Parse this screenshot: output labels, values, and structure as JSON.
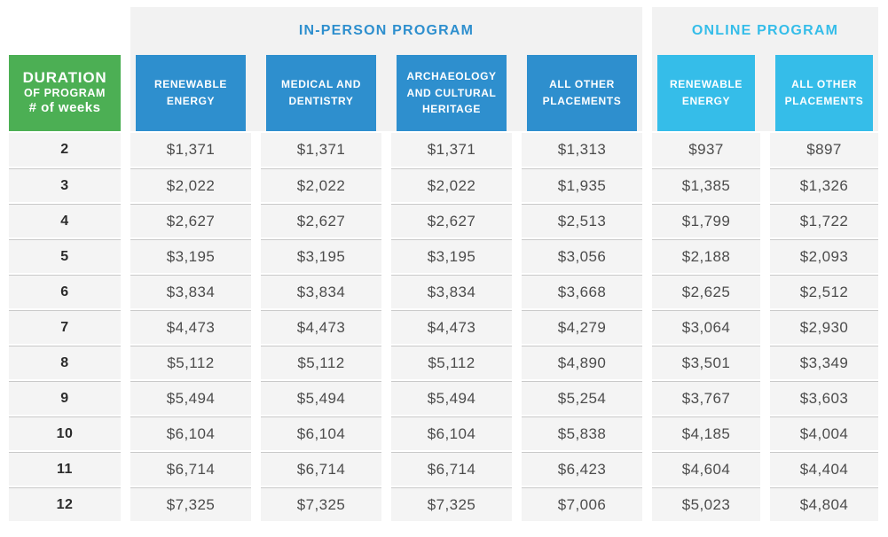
{
  "colors": {
    "green_header": "#4caf54",
    "blue_header": "#2e8fce",
    "cyan_header": "#35bde9",
    "banner_background": "#f2f2f2",
    "cell_background": "#f4f4f4",
    "row_separator": "#c9c9c9",
    "price_text": "#4c4c4c"
  },
  "chart_data": {
    "type": "table",
    "row_header_lines": [
      "DURATION",
      "OF PROGRAM",
      "# of weeks"
    ],
    "groups": [
      {
        "label": "IN-PERSON PROGRAM",
        "columns": [
          "RENEWABLE ENERGY",
          "MEDICAL AND DENTISTRY",
          "ARCHAEOLOGY AND CULTURAL HERITAGE",
          "ALL OTHER PLACEMENTS"
        ]
      },
      {
        "label": "ONLINE PROGRAM",
        "columns": [
          "RENEWABLE ENERGY",
          "ALL OTHER PLACEMENTS"
        ]
      }
    ],
    "rows": [
      {
        "week": "2",
        "values": [
          "$1,371",
          "$1,371",
          "$1,371",
          "$1,313",
          "$937",
          "$897"
        ]
      },
      {
        "week": "3",
        "values": [
          "$2,022",
          "$2,022",
          "$2,022",
          "$1,935",
          "$1,385",
          "$1,326"
        ]
      },
      {
        "week": "4",
        "values": [
          "$2,627",
          "$2,627",
          "$2,627",
          "$2,513",
          "$1,799",
          "$1,722"
        ]
      },
      {
        "week": "5",
        "values": [
          "$3,195",
          "$3,195",
          "$3,195",
          "$3,056",
          "$2,188",
          "$2,093"
        ]
      },
      {
        "week": "6",
        "values": [
          "$3,834",
          "$3,834",
          "$3,834",
          "$3,668",
          "$2,625",
          "$2,512"
        ]
      },
      {
        "week": "7",
        "values": [
          "$4,473",
          "$4,473",
          "$4,473",
          "$4,279",
          "$3,064",
          "$2,930"
        ]
      },
      {
        "week": "8",
        "values": [
          "$5,112",
          "$5,112",
          "$5,112",
          "$4,890",
          "$3,501",
          "$3,349"
        ]
      },
      {
        "week": "9",
        "values": [
          "$5,494",
          "$5,494",
          "$5,494",
          "$5,254",
          "$3,767",
          "$3,603"
        ]
      },
      {
        "week": "10",
        "values": [
          "$6,104",
          "$6,104",
          "$6,104",
          "$5,838",
          "$4,185",
          "$4,004"
        ]
      },
      {
        "week": "11",
        "values": [
          "$6,714",
          "$6,714",
          "$6,714",
          "$6,423",
          "$4,604",
          "$4,404"
        ]
      },
      {
        "week": "12",
        "values": [
          "$7,325",
          "$7,325",
          "$7,325",
          "$7,006",
          "$5,023",
          "$4,804"
        ]
      }
    ]
  }
}
